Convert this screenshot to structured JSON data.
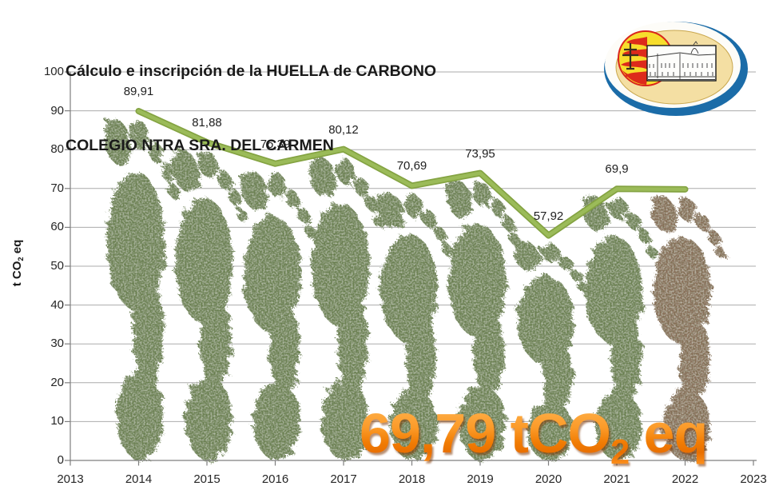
{
  "title": {
    "line1": "Cálculo e inscripción de la HUELLA de CARBONO",
    "line2": "COLEGIO NTRA SRA. DEL CARMEN"
  },
  "y_axis_title": {
    "prefix": "t CO",
    "sub": "2",
    "suffix": " eq"
  },
  "big_label": {
    "prefix": "69,79 tCO",
    "sub": "2",
    "suffix": " eq"
  },
  "chart_data": {
    "type": "line",
    "title": "Cálculo e inscripción de la HUELLA de CARBONO - COLEGIO NTRA SRA. DEL CARMEN",
    "x": [
      2014,
      2015,
      2016,
      2017,
      2018,
      2019,
      2020,
      2021,
      2022
    ],
    "values": [
      89.91,
      81.88,
      76.39,
      80.12,
      70.69,
      73.95,
      57.92,
      69.9,
      69.79
    ],
    "point_labels": [
      "89,91",
      "81,88",
      "76,39",
      "80,12",
      "70,69",
      "73,95",
      "57,92",
      "69,9",
      null
    ],
    "x_axis_ticks": [
      "2013",
      "2014",
      "2015",
      "2016",
      "2017",
      "2018",
      "2019",
      "2020",
      "2021",
      "2022",
      "2023"
    ],
    "y_ticks": [
      "0",
      "10",
      "20",
      "30",
      "40",
      "50",
      "60",
      "70",
      "80",
      "90",
      "100"
    ],
    "ylim": [
      0,
      100
    ],
    "xlabel": "",
    "ylabel": "t CO2 eq",
    "grid": true,
    "legend": "none",
    "line_color": "#9BBB59",
    "line_edge_color": "#84A342",
    "footprint_color": "#6F8457",
    "footprint_color_last": "#8A6F5A",
    "annotation": "69,79 tCO2 eq"
  }
}
